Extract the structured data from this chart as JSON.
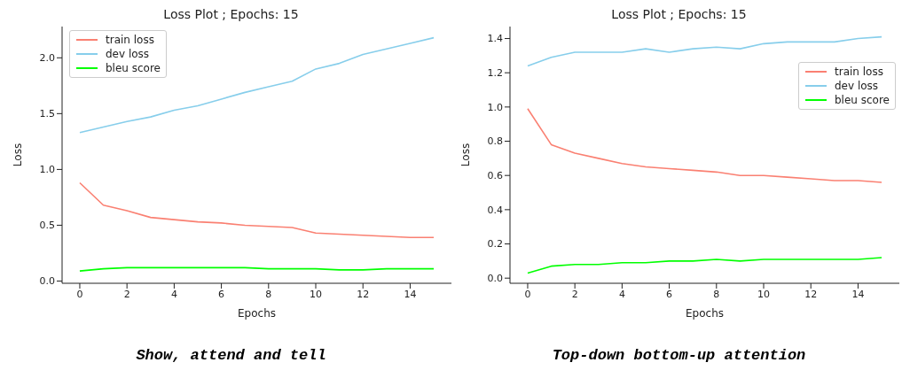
{
  "chart_data": [
    {
      "type": "line",
      "title": "Loss Plot ; Epochs: 15",
      "xlabel": "Epochs",
      "ylabel": "Loss",
      "legend": "top left",
      "x": [
        0,
        1,
        2,
        3,
        4,
        5,
        6,
        7,
        8,
        9,
        10,
        11,
        12,
        13,
        14,
        15
      ],
      "xlim": [
        -0.75,
        15.75
      ],
      "xticks": [
        0,
        2,
        4,
        6,
        8,
        10,
        12,
        14
      ],
      "ylim": [
        -0.02,
        2.28
      ],
      "yticks": [
        {
          "value": 0,
          "label": "0.0"
        },
        {
          "value": 0.5,
          "label": "0.5"
        },
        {
          "value": 1,
          "label": "1.0"
        },
        {
          "value": 1.5,
          "label": "1.5"
        },
        {
          "value": 2,
          "label": "2.0"
        }
      ],
      "series": [
        {
          "name": "train loss",
          "color": "#fa8072",
          "values": [
            0.88,
            0.68,
            0.63,
            0.57,
            0.55,
            0.53,
            0.52,
            0.5,
            0.49,
            0.48,
            0.43,
            0.42,
            0.41,
            0.4,
            0.39,
            0.39
          ]
        },
        {
          "name": "dev loss",
          "color": "#87ceeb",
          "values": [
            1.33,
            1.38,
            1.43,
            1.47,
            1.53,
            1.57,
            1.63,
            1.69,
            1.74,
            1.79,
            1.9,
            1.95,
            2.03,
            2.08,
            2.13,
            2.18
          ]
        },
        {
          "name": "bleu score",
          "color": "#00ff00",
          "values": [
            0.09,
            0.11,
            0.12,
            0.12,
            0.12,
            0.12,
            0.12,
            0.12,
            0.11,
            0.11,
            0.11,
            0.1,
            0.1,
            0.11,
            0.11,
            0.11
          ]
        }
      ],
      "annotations": [
        "Show, attend and tell"
      ]
    },
    {
      "type": "line",
      "title": "Loss Plot ; Epochs: 15",
      "xlabel": "Epochs",
      "ylabel": "Loss",
      "legend": "right",
      "x": [
        0,
        1,
        2,
        3,
        4,
        5,
        6,
        7,
        8,
        9,
        10,
        11,
        12,
        13,
        14,
        15
      ],
      "xlim": [
        -0.75,
        15.75
      ],
      "xticks": [
        0,
        2,
        4,
        6,
        8,
        10,
        12,
        14
      ],
      "ylim": [
        -0.03,
        1.47
      ],
      "yticks": [
        {
          "value": 0,
          "label": "0.0"
        },
        {
          "value": 0.2,
          "label": "0.2"
        },
        {
          "value": 0.4,
          "label": "0.4"
        },
        {
          "value": 0.6,
          "label": "0.6"
        },
        {
          "value": 0.8,
          "label": "0.8"
        },
        {
          "value": 1,
          "label": "1.0"
        },
        {
          "value": 1.2,
          "label": "1.2"
        },
        {
          "value": 1.4,
          "label": "1.4"
        }
      ],
      "series": [
        {
          "name": "train loss",
          "color": "#fa8072",
          "values": [
            0.99,
            0.78,
            0.73,
            0.7,
            0.67,
            0.65,
            0.64,
            0.63,
            0.62,
            0.6,
            0.6,
            0.59,
            0.58,
            0.57,
            0.57,
            0.56
          ]
        },
        {
          "name": "dev loss",
          "color": "#87ceeb",
          "values": [
            1.24,
            1.29,
            1.32,
            1.32,
            1.32,
            1.34,
            1.32,
            1.34,
            1.35,
            1.34,
            1.37,
            1.38,
            1.38,
            1.38,
            1.4,
            1.41
          ]
        },
        {
          "name": "bleu score",
          "color": "#00ff00",
          "values": [
            0.03,
            0.07,
            0.08,
            0.08,
            0.09,
            0.09,
            0.1,
            0.1,
            0.11,
            0.1,
            0.11,
            0.11,
            0.11,
            0.11,
            0.11,
            0.12
          ]
        }
      ],
      "annotations": [
        "Top-down bottom-up attention"
      ]
    }
  ]
}
